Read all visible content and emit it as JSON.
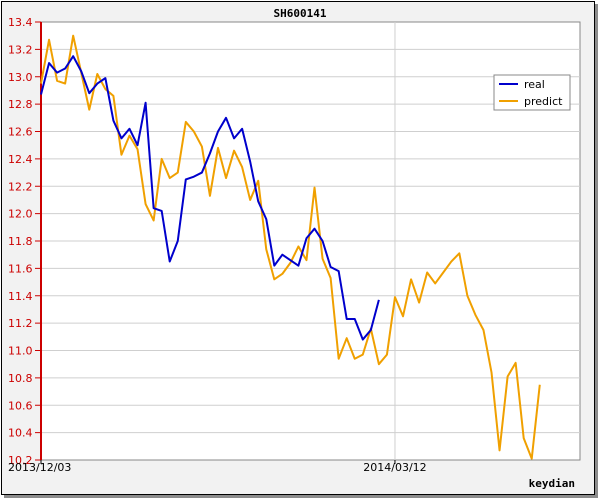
{
  "chart_data": {
    "type": "line",
    "title": "SH600141",
    "credit": "keydian",
    "xlabel": "",
    "ylabel": "",
    "ylim": [
      10.2,
      13.4
    ],
    "yticks": [
      "10.2",
      "10.4",
      "10.6",
      "10.8",
      "11.0",
      "11.2",
      "11.4",
      "11.6",
      "11.8",
      "12.0",
      "12.2",
      "12.4",
      "12.6",
      "12.8",
      "13.0",
      "13.2",
      "13.4"
    ],
    "xticks": [
      {
        "index": 0,
        "label": "2013/12/03"
      },
      {
        "index": 44,
        "label": "2014/03/12"
      }
    ],
    "n_points": 68,
    "grid": true,
    "legend_position": "top-right",
    "series": [
      {
        "name": "real",
        "color": "#0000cc",
        "values": [
          12.87,
          13.1,
          13.03,
          13.06,
          13.15,
          13.04,
          12.88,
          12.95,
          12.99,
          12.68,
          12.55,
          12.62,
          12.5,
          12.81,
          12.04,
          12.02,
          11.65,
          11.8,
          12.25,
          12.27,
          12.3,
          12.44,
          12.6,
          12.7,
          12.55,
          12.62,
          12.38,
          12.09,
          11.96,
          11.62,
          11.7,
          11.66,
          11.62,
          11.82,
          11.89,
          11.8,
          11.61,
          11.58,
          11.23,
          11.23,
          11.08,
          11.15,
          11.37
        ]
      },
      {
        "name": "predict",
        "color": "#f0a000",
        "values": [
          12.95,
          13.27,
          12.97,
          12.95,
          13.3,
          13.03,
          12.76,
          13.02,
          12.91,
          12.86,
          12.43,
          12.57,
          12.47,
          12.07,
          11.95,
          12.4,
          12.26,
          12.3,
          12.67,
          12.6,
          12.49,
          12.13,
          12.48,
          12.26,
          12.46,
          12.34,
          12.1,
          12.24,
          11.74,
          11.52,
          11.56,
          11.64,
          11.76,
          11.66,
          12.19,
          11.67,
          11.53,
          10.94,
          11.09,
          10.94,
          10.97,
          11.16,
          10.9,
          10.97,
          11.39,
          11.25,
          11.52,
          11.35,
          11.57,
          11.49,
          11.57,
          11.65,
          11.71,
          11.4,
          11.26,
          11.15,
          10.84,
          10.27,
          10.81,
          10.91,
          10.36,
          10.21,
          10.75
        ]
      }
    ]
  }
}
